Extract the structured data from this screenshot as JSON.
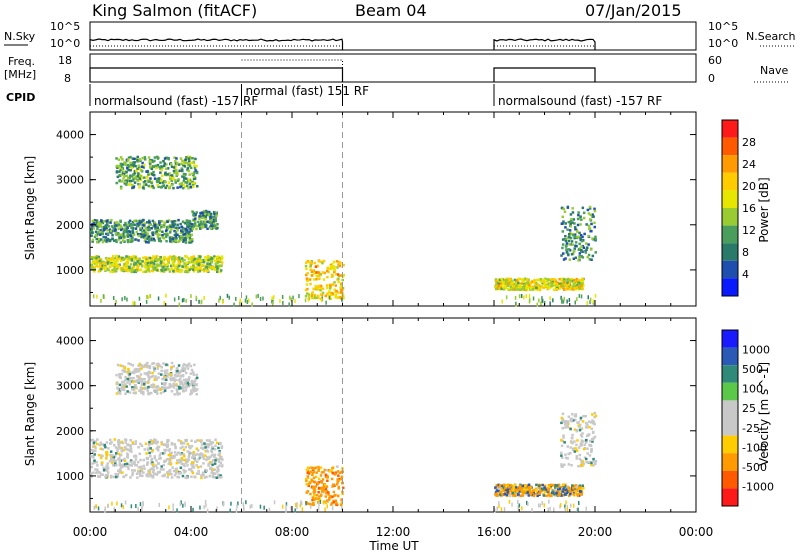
{
  "header": {
    "station": "King Salmon (fitACF)",
    "beam": "Beam 04",
    "date": "07/Jan/2015"
  },
  "left_labels": {
    "nsky": "N.Sky",
    "freq_top": "Freq.",
    "freq_unit": "[MHz]",
    "cpid": "CPID"
  },
  "right_labels": {
    "nsearch": "N.Search",
    "nave": "Nave"
  },
  "nsky_ticks": [
    "10^5",
    "10^0"
  ],
  "nsearch_ticks": [
    "10^5",
    "10^0"
  ],
  "freq_ticks": [
    "18",
    "8"
  ],
  "nave_ticks": [
    "60",
    "0"
  ],
  "cpid_segments": [
    {
      "label": "normalsound (fast) -157 RF",
      "start": 0,
      "end": 6
    },
    {
      "label": "normal (fast) 151 RF",
      "start": 6,
      "end": 10
    },
    {
      "label": "normalsound (fast) -157 RF",
      "start": 16,
      "end": 20
    }
  ],
  "colorbars": {
    "power": {
      "label": "Power [dB]",
      "ticks": [
        "28",
        "24",
        "20",
        "16",
        "12",
        "8",
        "4"
      ],
      "colors": [
        "#ff1a1a",
        "#ff5a00",
        "#ff9a00",
        "#ffcc00",
        "#e6e600",
        "#99cc33",
        "#4a9e5c",
        "#2a7a6a",
        "#1f4fae",
        "#0a1aff"
      ]
    },
    "velocity": {
      "label": "Velocity [m s^-1]",
      "ticks": [
        "1000",
        "500",
        "100",
        "25",
        "-25",
        "-100",
        "-500",
        "-1000"
      ],
      "colors": [
        "#1a1aff",
        "#2a5ab5",
        "#2f8a7a",
        "#5cc84a",
        "#c8c8c8",
        "#c8c8c8",
        "#ffcc00",
        "#ff9a00",
        "#ff5a00",
        "#ff1a1a"
      ]
    }
  },
  "chart_data": [
    {
      "type": "heatmap",
      "panel": "power",
      "ylabel": "Slant Range [km]",
      "xlim": [
        0,
        24
      ],
      "ylim": [
        200,
        4500
      ],
      "yticks": [
        "1000",
        "2000",
        "3000",
        "4000"
      ],
      "scatter_regions": [
        {
          "t": [
            0.0,
            5.2
          ],
          "r": [
            950,
            1300
          ],
          "value": 14
        },
        {
          "t": [
            0.0,
            4.0
          ],
          "r": [
            1600,
            2100
          ],
          "value": 8
        },
        {
          "t": [
            1.0,
            4.2
          ],
          "r": [
            2800,
            3500
          ],
          "value": 10
        },
        {
          "t": [
            4.0,
            5.0
          ],
          "r": [
            1900,
            2300
          ],
          "value": 8
        },
        {
          "t": [
            8.5,
            10.0
          ],
          "r": [
            350,
            1200
          ],
          "value": 18
        },
        {
          "t": [
            16.0,
            19.5
          ],
          "r": [
            550,
            800
          ],
          "value": 16
        },
        {
          "t": [
            18.6,
            20.0
          ],
          "r": [
            1200,
            2400
          ],
          "value": 8
        }
      ]
    },
    {
      "type": "heatmap",
      "panel": "velocity",
      "ylabel": "Slant Range [km]",
      "xlabel": "Time UT",
      "xlim": [
        0,
        24
      ],
      "ylim": [
        200,
        4500
      ],
      "yticks": [
        "1000",
        "2000",
        "3000",
        "4000"
      ],
      "xticks": [
        "00:00",
        "04:00",
        "08:00",
        "12:00",
        "16:00",
        "20:00",
        "00:00"
      ],
      "scatter_regions": [
        {
          "t": [
            0.0,
            5.2
          ],
          "r": [
            950,
            1800
          ],
          "value": 0
        },
        {
          "t": [
            1.0,
            4.2
          ],
          "r": [
            2800,
            3500
          ],
          "value": 0
        },
        {
          "t": [
            8.5,
            10.0
          ],
          "r": [
            350,
            1200
          ],
          "value": -300
        },
        {
          "t": [
            16.0,
            19.5
          ],
          "r": [
            550,
            800
          ],
          "value": -100
        },
        {
          "t": [
            18.6,
            20.0
          ],
          "r": [
            1200,
            2400
          ],
          "value": 0
        }
      ]
    }
  ]
}
